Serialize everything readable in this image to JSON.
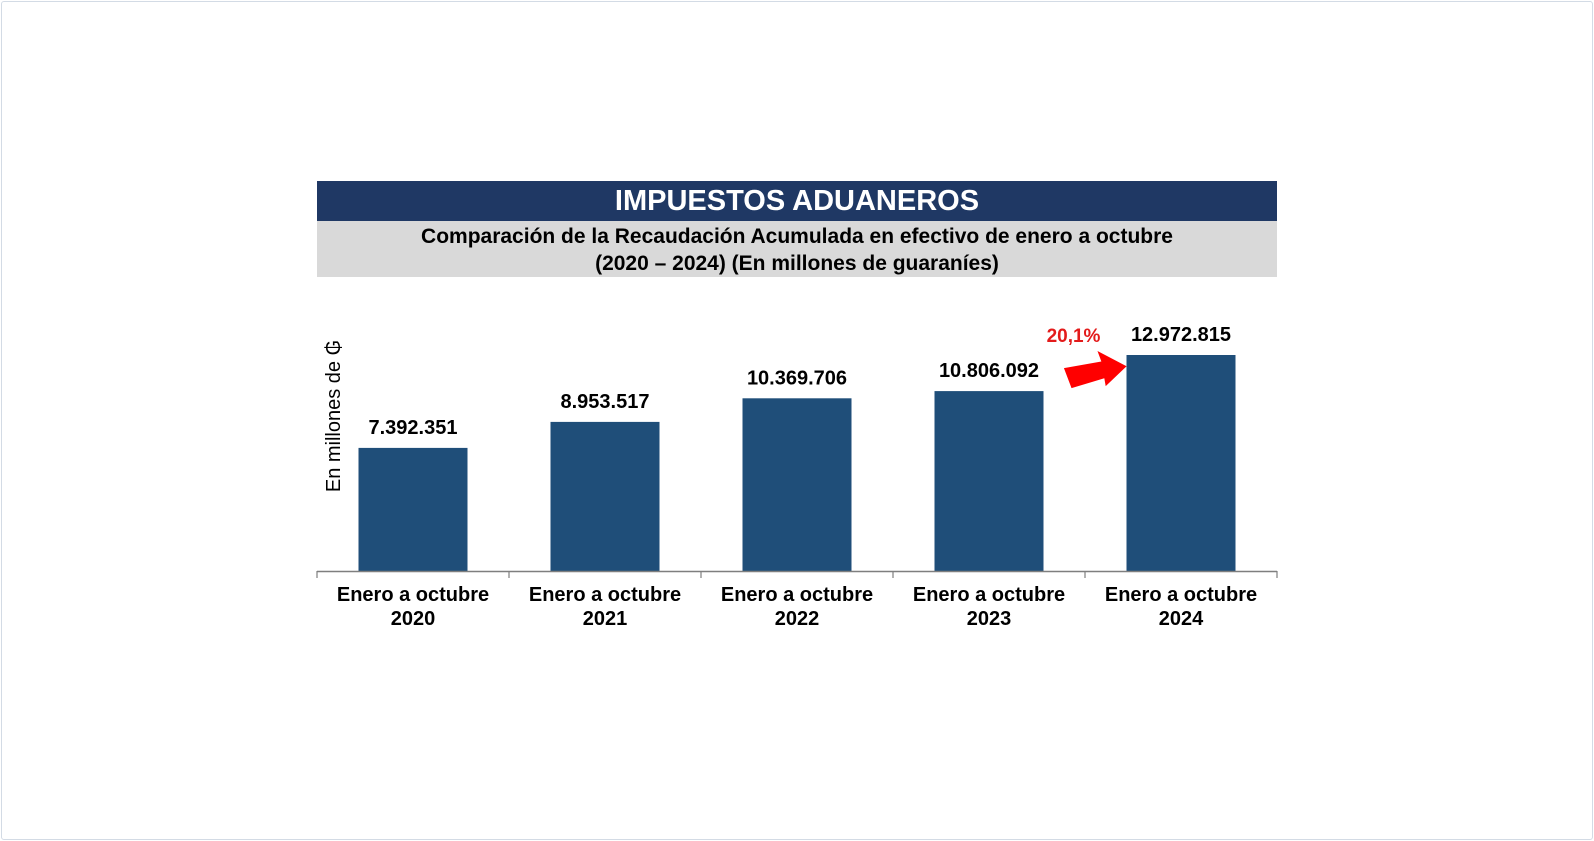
{
  "header": {
    "title": "IMPUESTOS ADUANEROS",
    "subtitle_line1": "Comparación de la Recaudación Acumulada en efectivo de enero a octubre",
    "subtitle_line2": "(2020 – 2024) (En millones de guaraníes)"
  },
  "colors": {
    "title_bg": "#1f3864",
    "subtitle_bg": "#d9d9d9",
    "bar": "#1f4e79",
    "arrow": "#ff0000",
    "growth_text": "#e31b1b"
  },
  "chart_data": {
    "type": "bar",
    "ylabel": "En millones de ₲",
    "categories": [
      [
        "Enero a octubre",
        "2020"
      ],
      [
        "Enero a octubre",
        "2021"
      ],
      [
        "Enero a octubre",
        "2022"
      ],
      [
        "Enero a octubre",
        "2023"
      ],
      [
        "Enero a octubre",
        "2024"
      ]
    ],
    "values": [
      7392351,
      8953517,
      10369706,
      10806092,
      12972815
    ],
    "value_labels": [
      "7.392.351",
      "8.953.517",
      "10.369.706",
      "10.806.092",
      "12.972.815"
    ],
    "annotation": {
      "text": "20,1%",
      "icon": "arrow-right-icon",
      "from_index": 3,
      "to_index": 4
    },
    "grid": false,
    "legend": "none"
  }
}
